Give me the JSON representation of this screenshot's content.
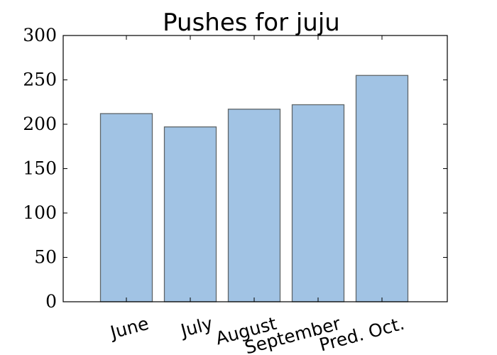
{
  "chart_data": {
    "type": "bar",
    "title": "Pushes for juju",
    "xlabel": "",
    "ylabel": "",
    "categories": [
      "June",
      "July",
      "August",
      "September",
      "Pred. Oct."
    ],
    "values": [
      212,
      197,
      217,
      222,
      255
    ],
    "ylim": [
      0,
      300
    ],
    "yticks": [
      "0",
      "50",
      "100",
      "150",
      "200",
      "250",
      "300"
    ],
    "grid": false,
    "legend": "none",
    "bar_color": "#a1c3e4",
    "bar_edge_color": "#5f6568",
    "xtick_rotation_deg": -15
  }
}
